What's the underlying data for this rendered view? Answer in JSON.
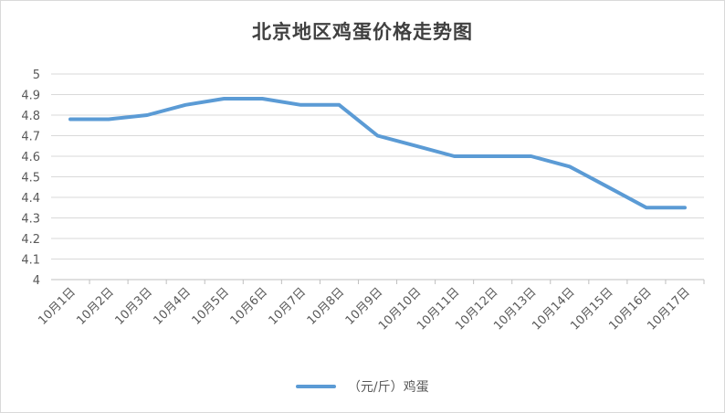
{
  "chart_data": {
    "type": "line",
    "title": "北京地区鸡蛋价格走势图",
    "categories": [
      "10月1日",
      "10月2日",
      "10月3日",
      "10月4日",
      "10月5日",
      "10月6日",
      "10月7日",
      "10月8日",
      "10月9日",
      "10月10日",
      "10月11日",
      "10月12日",
      "10月13日",
      "10月14日",
      "10月15日",
      "10月16日",
      "10月17日"
    ],
    "series": [
      {
        "name": "（元/斤）鸡蛋",
        "color": "#5b9bd5",
        "values": [
          4.78,
          4.78,
          4.8,
          4.85,
          4.88,
          4.88,
          4.85,
          4.85,
          4.7,
          4.65,
          4.6,
          4.6,
          4.6,
          4.55,
          4.45,
          4.35,
          4.35
        ]
      }
    ],
    "yticks": [
      "4",
      "4.1",
      "4.2",
      "4.3",
      "4.4",
      "4.5",
      "4.6",
      "4.7",
      "4.8",
      "4.9",
      "5"
    ],
    "ylim": [
      4,
      5
    ],
    "grid": true,
    "legend_position": "bottom"
  }
}
